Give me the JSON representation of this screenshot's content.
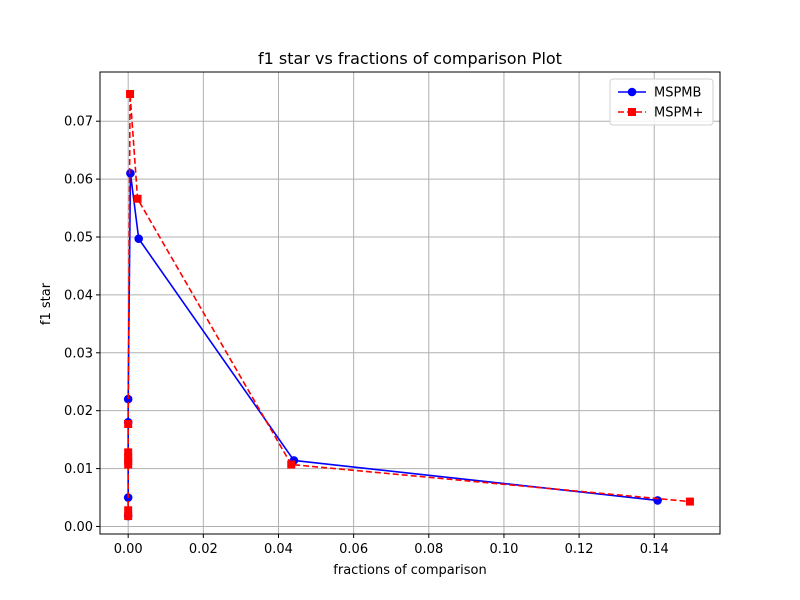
{
  "chart_data": {
    "type": "line",
    "title": "f1 star vs fractions of comparison Plot",
    "xlabel": "fractions of comparison",
    "ylabel": "f1 star",
    "xlim": [
      -0.0075,
      0.1575
    ],
    "ylim": [
      -0.0013,
      0.0785
    ],
    "xticks": [
      0.0,
      0.02,
      0.04,
      0.06,
      0.08,
      0.1,
      0.12,
      0.14
    ],
    "xtick_labels": [
      "0.00",
      "0.02",
      "0.04",
      "0.06",
      "0.08",
      "0.10",
      "0.12",
      "0.14"
    ],
    "yticks": [
      0.0,
      0.01,
      0.02,
      0.03,
      0.04,
      0.05,
      0.06,
      0.07
    ],
    "ytick_labels": [
      "0.00",
      "0.01",
      "0.02",
      "0.03",
      "0.04",
      "0.05",
      "0.06",
      "0.07"
    ],
    "grid": true,
    "legend_position": "top-right",
    "series": [
      {
        "name": "MSPMB",
        "color": "#0000ff",
        "line_style": "solid",
        "marker": "circle",
        "x": [
          0.0,
          0.0,
          0.0,
          0.0,
          0.0006,
          0.0028,
          0.0441,
          0.1409
        ],
        "y": [
          0.0018,
          0.005,
          0.018,
          0.022,
          0.061,
          0.0497,
          0.0114,
          0.0045
        ]
      },
      {
        "name": "MSPM+",
        "color": "#ff0000",
        "line_style": "dashed",
        "marker": "square",
        "x": [
          0.0,
          0.0,
          0.0,
          0.0,
          0.0,
          0.0,
          0.0,
          0.0005,
          0.0025,
          0.0434,
          0.1495
        ],
        "y": [
          0.0018,
          0.0028,
          0.0107,
          0.0113,
          0.012,
          0.0128,
          0.0177,
          0.0747,
          0.0566,
          0.0107,
          0.0043
        ]
      }
    ]
  }
}
